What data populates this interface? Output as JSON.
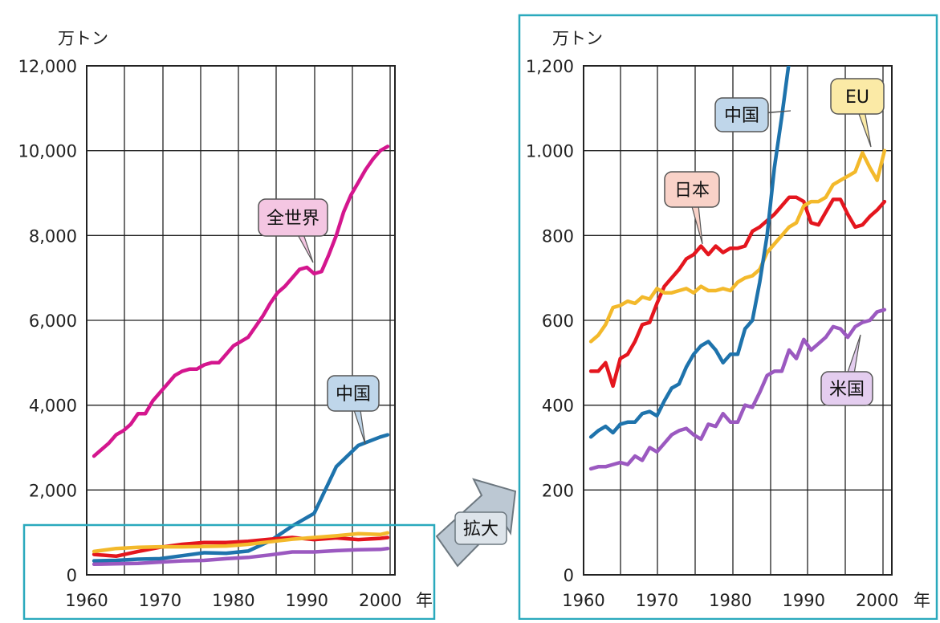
{
  "colors": {
    "world": "#d4168e",
    "china": "#1e73ac",
    "japan": "#e4161e",
    "eu": "#f3b92b",
    "usa": "#9b59c0",
    "grid": "#222222",
    "frame": "#2aa9bd",
    "callout_pink": "#f4c6e2",
    "callout_blue": "#bfd6ea",
    "callout_red": "#f9d2c8",
    "callout_yellow": "#fbeaa6",
    "callout_purple": "#e4cdef",
    "arrow_fill": "#bcc8d3"
  },
  "zoom_label": "拡大",
  "chart_data": [
    {
      "type": "line",
      "unit_label": "万トン",
      "x_suffix": "年",
      "xlim": [
        1960,
        2002
      ],
      "ylim": [
        0,
        12000
      ],
      "x_ticks": [
        1960,
        1970,
        1980,
        1990,
        2000
      ],
      "x_tick_labels": [
        "1960",
        "1970",
        "1980",
        "1990",
        "2000"
      ],
      "y_ticks": [
        0,
        2000,
        4000,
        6000,
        8000,
        10000,
        12000
      ],
      "y_tick_labels": [
        "0",
        "2,000",
        "4,000",
        "6,000",
        "8,000",
        "10,000",
        "12,000"
      ],
      "series": [
        {
          "name": "全世界",
          "color_key": "world",
          "x": [
            1961,
            1962,
            1963,
            1964,
            1965,
            1966,
            1967,
            1968,
            1969,
            1970,
            1971,
            1972,
            1973,
            1974,
            1975,
            1976,
            1977,
            1978,
            1979,
            1980,
            1981,
            1982,
            1983,
            1984,
            1985,
            1986,
            1987,
            1988,
            1989,
            1990,
            1991,
            1992,
            1993,
            1994,
            1995,
            1996,
            1997,
            1998,
            1999,
            2000,
            2001
          ],
          "y": [
            2800,
            2950,
            3100,
            3300,
            3400,
            3550,
            3800,
            3800,
            4100,
            4300,
            4500,
            4700,
            4800,
            4850,
            4850,
            4950,
            5000,
            5000,
            5200,
            5400,
            5500,
            5600,
            5850,
            6100,
            6400,
            6650,
            6800,
            7000,
            7200,
            7250,
            7100,
            7150,
            7550,
            8000,
            8550,
            8950,
            9250,
            9550,
            9800,
            10000,
            10100
          ]
        },
        {
          "name": "中国",
          "color_key": "china",
          "x": [
            1961,
            1964,
            1967,
            1970,
            1973,
            1976,
            1979,
            1982,
            1985,
            1988,
            1991,
            1994,
            1997,
            2000,
            2001
          ],
          "y": [
            330,
            340,
            370,
            380,
            450,
            520,
            510,
            560,
            800,
            1150,
            1450,
            2550,
            3050,
            3250,
            3300
          ]
        },
        {
          "name": "日本",
          "color_key": "japan",
          "x": [
            1961,
            1964,
            1967,
            1970,
            1973,
            1976,
            1979,
            1982,
            1985,
            1988,
            1991,
            1994,
            1997,
            2000,
            2001
          ],
          "y": [
            480,
            440,
            550,
            650,
            720,
            760,
            760,
            790,
            840,
            880,
            830,
            870,
            830,
            860,
            880
          ]
        },
        {
          "name": "EU",
          "color_key": "eu",
          "x": [
            1961,
            1964,
            1967,
            1970,
            1973,
            1976,
            1979,
            1982,
            1985,
            1988,
            1991,
            1994,
            1997,
            2000,
            2001
          ],
          "y": [
            550,
            620,
            650,
            660,
            660,
            670,
            680,
            720,
            780,
            840,
            880,
            920,
            970,
            950,
            990
          ]
        },
        {
          "name": "米国",
          "color_key": "usa",
          "x": [
            1961,
            1964,
            1967,
            1970,
            1973,
            1976,
            1979,
            1982,
            1985,
            1988,
            1991,
            1994,
            1997,
            2000,
            2001
          ],
          "y": [
            250,
            260,
            270,
            300,
            330,
            340,
            380,
            410,
            470,
            540,
            540,
            570,
            590,
            600,
            620
          ]
        }
      ],
      "labels": [
        {
          "text": "全世界",
          "series": "全世界"
        },
        {
          "text": "中国",
          "series": "中国"
        }
      ]
    },
    {
      "type": "line",
      "unit_label": "万トン",
      "x_suffix": "年",
      "xlim": [
        1960,
        2002
      ],
      "ylim": [
        0,
        1200
      ],
      "x_ticks": [
        1960,
        1970,
        1980,
        1990,
        2000
      ],
      "x_tick_labels": [
        "1960",
        "1970",
        "1980",
        "1990",
        "2000"
      ],
      "y_ticks": [
        0,
        200,
        400,
        600,
        800,
        1000,
        1200
      ],
      "y_tick_labels": [
        "0",
        "200",
        "400",
        "600",
        "800",
        "1.000",
        "1,200"
      ],
      "series": [
        {
          "name": "日本",
          "color_key": "japan",
          "x": [
            1961,
            1962,
            1963,
            1964,
            1965,
            1966,
            1967,
            1968,
            1969,
            1970,
            1971,
            1972,
            1973,
            1974,
            1975,
            1976,
            1977,
            1978,
            1979,
            1980,
            1981,
            1982,
            1983,
            1984,
            1985,
            1986,
            1987,
            1988,
            1989,
            1990,
            1991,
            1992,
            1993,
            1994,
            1995,
            1996,
            1997,
            1998,
            1999,
            2000,
            2001
          ],
          "y": [
            480,
            480,
            500,
            445,
            510,
            520,
            550,
            590,
            595,
            640,
            680,
            700,
            720,
            745,
            755,
            775,
            755,
            775,
            760,
            770,
            770,
            775,
            810,
            820,
            835,
            850,
            870,
            890,
            890,
            880,
            830,
            825,
            855,
            885,
            885,
            850,
            820,
            825,
            845,
            860,
            880
          ]
        },
        {
          "name": "EU",
          "color_key": "eu",
          "x": [
            1961,
            1962,
            1963,
            1964,
            1965,
            1966,
            1967,
            1968,
            1969,
            1970,
            1971,
            1972,
            1973,
            1974,
            1975,
            1976,
            1977,
            1978,
            1979,
            1980,
            1981,
            1982,
            1983,
            1984,
            1985,
            1986,
            1987,
            1988,
            1989,
            1990,
            1991,
            1992,
            1993,
            1994,
            1995,
            1996,
            1997,
            1998,
            1999,
            2000,
            2001
          ],
          "y": [
            550,
            565,
            590,
            630,
            635,
            645,
            640,
            655,
            650,
            675,
            665,
            665,
            670,
            675,
            665,
            680,
            670,
            670,
            675,
            670,
            690,
            700,
            705,
            720,
            760,
            780,
            800,
            820,
            830,
            870,
            880,
            880,
            890,
            920,
            930,
            940,
            950,
            995,
            960,
            930,
            1000
          ]
        },
        {
          "name": "中国",
          "color_key": "china",
          "x": [
            1961,
            1962,
            1963,
            1964,
            1965,
            1966,
            1967,
            1968,
            1969,
            1970,
            1971,
            1972,
            1973,
            1974,
            1975,
            1976,
            1977,
            1978,
            1979,
            1980,
            1981,
            1982,
            1983,
            1984,
            1985,
            1986,
            1987,
            1988
          ],
          "y": [
            325,
            340,
            350,
            335,
            355,
            360,
            360,
            380,
            385,
            375,
            410,
            440,
            450,
            490,
            520,
            540,
            550,
            530,
            500,
            520,
            520,
            580,
            600,
            690,
            800,
            960,
            1080,
            1210
          ]
        },
        {
          "name": "米国",
          "color_key": "usa",
          "x": [
            1961,
            1962,
            1963,
            1964,
            1965,
            1966,
            1967,
            1968,
            1969,
            1970,
            1971,
            1972,
            1973,
            1974,
            1975,
            1976,
            1977,
            1978,
            1979,
            1980,
            1981,
            1982,
            1983,
            1984,
            1985,
            1986,
            1987,
            1988,
            1989,
            1990,
            1991,
            1992,
            1993,
            1994,
            1995,
            1996,
            1997,
            1998,
            1999,
            2000,
            2001
          ],
          "y": [
            250,
            255,
            255,
            260,
            265,
            260,
            280,
            270,
            300,
            290,
            310,
            330,
            340,
            345,
            330,
            320,
            355,
            350,
            380,
            360,
            360,
            400,
            395,
            430,
            470,
            480,
            480,
            530,
            510,
            555,
            530,
            545,
            560,
            585,
            580,
            560,
            585,
            595,
            600,
            620,
            625
          ]
        }
      ],
      "labels": [
        {
          "text": "中国",
          "series": "中国"
        },
        {
          "text": "EU",
          "series": "EU"
        },
        {
          "text": "日本",
          "series": "日本"
        },
        {
          "text": "米国",
          "series": "米国"
        }
      ]
    }
  ]
}
